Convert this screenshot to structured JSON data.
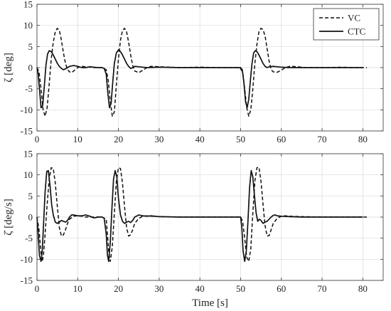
{
  "chart_data": [
    {
      "type": "line",
      "ylabel": "ζ [deg]",
      "xlabel": "",
      "xlim": [
        0,
        85
      ],
      "ylim": [
        -15,
        15
      ],
      "xticks": [
        "0",
        "10",
        "20",
        "30",
        "40",
        "50",
        "60",
        "70",
        "80"
      ],
      "yticks": [
        "-15",
        "-10",
        "-5",
        "0",
        "5",
        "10",
        "15"
      ],
      "grid": true,
      "legend": "top-right",
      "series": [
        {
          "name": "VC",
          "style": "dashed",
          "color": "#111111",
          "x": [
            0,
            0.5,
            1.0,
            1.5,
            2.0,
            2.5,
            3.0,
            3.5,
            4.0,
            4.5,
            5.0,
            5.5,
            6.0,
            6.5,
            7.0,
            7.5,
            8.0,
            8.5,
            9.0,
            10.0,
            11.0,
            12.0,
            14.0,
            16.0,
            17.0,
            17.5,
            18.0,
            18.5,
            19.0,
            19.5,
            20.0,
            20.5,
            21.0,
            21.5,
            22.0,
            22.5,
            23.0,
            23.5,
            24.0,
            25.0,
            26.0,
            27.0,
            28.0,
            30.0,
            35.0,
            40.0,
            45.0,
            49.0,
            50.0,
            50.5,
            51.0,
            51.5,
            52.0,
            52.5,
            53.0,
            53.5,
            54.0,
            54.5,
            55.0,
            55.5,
            56.0,
            56.5,
            57.0,
            57.5,
            58.0,
            59.0,
            60.0,
            61.0,
            62.0,
            64.0,
            66.0,
            70.0,
            75.0,
            78.0,
            80.0,
            81.0
          ],
          "y": [
            0,
            -1,
            -5,
            -10,
            -11.5,
            -9.5,
            -4,
            2,
            6,
            8.5,
            9.3,
            8.8,
            6.5,
            3.5,
            1,
            -0.5,
            -1,
            -1.2,
            -0.8,
            0,
            0.3,
            0.2,
            0,
            0,
            -0.5,
            -3,
            -8,
            -11.5,
            -10.5,
            -4,
            2,
            6.5,
            8.8,
            9.3,
            8.5,
            6,
            3,
            0.5,
            -0.8,
            -1.2,
            -0.6,
            0,
            0.3,
            0.2,
            0,
            0.1,
            0,
            0,
            -0.3,
            -1,
            -5,
            -9.5,
            -11.5,
            -10,
            -5,
            1,
            5.5,
            8.5,
            9.3,
            9.0,
            7.5,
            4.5,
            1.5,
            -0.5,
            -1,
            -1.1,
            -0.6,
            0,
            0.3,
            0.2,
            0,
            0,
            0.1,
            0,
            0,
            0
          ]
        },
        {
          "name": "CTC",
          "style": "solid",
          "color": "#111111",
          "x": [
            0,
            0.3,
            0.7,
            1.0,
            1.4,
            1.8,
            2.2,
            2.6,
            3.0,
            3.5,
            4.0,
            4.5,
            5.0,
            5.5,
            6.0,
            6.5,
            7.0,
            7.5,
            8.0,
            9.0,
            10.0,
            11.0,
            12.0,
            13.0,
            14.0,
            15.0,
            16.0,
            16.5,
            17.0,
            17.4,
            17.8,
            18.2,
            18.6,
            19.0,
            19.5,
            20.0,
            20.5,
            21.0,
            21.5,
            22.0,
            22.5,
            23.0,
            23.5,
            24.0,
            25.0,
            26.0,
            27.0,
            30.0,
            35.0,
            40.0,
            45.0,
            49.0,
            50.0,
            50.4,
            50.8,
            51.2,
            51.6,
            52.0,
            52.4,
            52.8,
            53.2,
            53.6,
            54.0,
            54.5,
            55.0,
            55.5,
            56.0,
            56.5,
            57.0,
            58.0,
            59.0,
            60.0,
            62.0,
            65.0,
            70.0,
            75.0,
            80.0
          ],
          "y": [
            0,
            -1.5,
            -6,
            -9.5,
            -9,
            -4.5,
            0.5,
            3.2,
            4.0,
            3.8,
            3.0,
            2.0,
            1.0,
            0.3,
            -0.2,
            -0.5,
            -0.3,
            0,
            0.3,
            0.5,
            0.3,
            0,
            0,
            0.2,
            0.1,
            0,
            0,
            -0.2,
            -1.5,
            -6,
            -9.5,
            -8.5,
            -3.5,
            1,
            3.5,
            4.2,
            3.8,
            3.0,
            2.0,
            1.0,
            0.3,
            -0.2,
            0,
            0.3,
            0.2,
            0.1,
            0,
            0.1,
            0,
            0,
            0,
            0,
            0,
            -0.5,
            -3.5,
            -8,
            -9.5,
            -7.5,
            -3,
            1,
            3.5,
            4.0,
            3.8,
            3.0,
            2.0,
            1.0,
            0.3,
            0,
            0.2,
            0.3,
            0.2,
            0.1,
            0,
            0,
            0,
            0,
            0
          ]
        }
      ]
    },
    {
      "type": "line",
      "ylabel": "ζ̇ [deg/s]",
      "xlabel": "Time [s]",
      "xlim": [
        0,
        85
      ],
      "ylim": [
        -15,
        15
      ],
      "xticks": [
        "0",
        "10",
        "20",
        "30",
        "40",
        "50",
        "60",
        "70",
        "80"
      ],
      "yticks": [
        "-15",
        "-10",
        "-5",
        "0",
        "5",
        "10",
        "15"
      ],
      "grid": true,
      "series": [
        {
          "name": "VC",
          "style": "dashed",
          "color": "#111111",
          "x": [
            0,
            0.5,
            1.0,
            1.3,
            1.6,
            2.0,
            2.5,
            3.0,
            3.5,
            4.0,
            4.5,
            5.0,
            5.5,
            6.0,
            6.5,
            7.0,
            7.5,
            8.0,
            9.0,
            10.0,
            11.0,
            12.0,
            14.0,
            16.0,
            17.0,
            17.3,
            17.6,
            18.0,
            18.5,
            19.0,
            19.5,
            20.0,
            20.5,
            21.0,
            21.5,
            22.0,
            22.5,
            23.0,
            23.5,
            24.0,
            25.0,
            26.0,
            27.0,
            28.0,
            30.0,
            35.0,
            40.0,
            45.0,
            50.0,
            50.5,
            51.0,
            51.5,
            52.0,
            52.5,
            53.0,
            53.5,
            54.0,
            54.5,
            55.0,
            55.5,
            56.0,
            56.5,
            57.0,
            57.5,
            58.0,
            59.0,
            60.0,
            61.0,
            62.0,
            65.0,
            70.0,
            75.0,
            80.0,
            81.0
          ],
          "y": [
            0,
            -3,
            -8.5,
            -10.5,
            -9,
            -4,
            3,
            9,
            11.7,
            11.5,
            8,
            2.5,
            -2.5,
            -4.5,
            -4.2,
            -3,
            -1.5,
            -0.5,
            0.2,
            0.3,
            0.2,
            0,
            0,
            0,
            -0.5,
            -4,
            -8,
            -10.5,
            -7,
            1,
            8.5,
            11.7,
            11.5,
            8,
            2.5,
            -2.5,
            -4.5,
            -4.2,
            -3,
            -1.5,
            -0.3,
            0.2,
            0.3,
            0.2,
            0.1,
            0,
            0,
            0,
            0,
            -1,
            -5,
            -9.5,
            -10.5,
            -7.5,
            1,
            8.5,
            11.7,
            11.8,
            8.5,
            3,
            -2,
            -4.5,
            -4.4,
            -3,
            -1.5,
            -0.3,
            0.2,
            0.3,
            0.2,
            0.1,
            0,
            0,
            0,
            0
          ]
        },
        {
          "name": "CTC",
          "style": "solid",
          "color": "#111111",
          "x": [
            0,
            0.3,
            0.6,
            1.0,
            1.3,
            1.6,
            2.0,
            2.4,
            2.8,
            3.2,
            3.6,
            4.0,
            4.5,
            5.0,
            5.5,
            6.0,
            6.5,
            7.0,
            7.5,
            8.0,
            8.5,
            9.0,
            10.0,
            11.0,
            12.0,
            13.0,
            14.0,
            15.0,
            16.0,
            16.5,
            17.0,
            17.3,
            17.6,
            18.0,
            18.4,
            18.8,
            19.2,
            19.6,
            20.0,
            20.5,
            21.0,
            21.5,
            22.0,
            22.5,
            23.0,
            23.5,
            24.0,
            25.0,
            26.0,
            27.0,
            28.0,
            30.0,
            35.0,
            40.0,
            45.0,
            49.0,
            50.0,
            50.3,
            50.6,
            51.0,
            51.4,
            51.8,
            52.2,
            52.6,
            53.0,
            53.4,
            53.8,
            54.2,
            54.6,
            55.0,
            55.5,
            56.0,
            56.5,
            57.0,
            57.5,
            58.0,
            58.5,
            59.0,
            60.0,
            62.0,
            65.0,
            70.0,
            75.0,
            80.0
          ],
          "y": [
            0,
            -4,
            -9,
            -10.5,
            -8,
            -2,
            6,
            10.8,
            11.0,
            7.5,
            3,
            0.5,
            -1.2,
            -1.5,
            -1.2,
            -0.8,
            -1.0,
            -1.2,
            -0.8,
            0,
            0.5,
            0.5,
            0.3,
            0.3,
            0.5,
            0.2,
            -0.2,
            0,
            0,
            -0.3,
            -4,
            -9,
            -10.5,
            -6,
            2,
            9,
            11.0,
            9.5,
            4.5,
            0.5,
            -1.0,
            -1.5,
            -1.2,
            -1.0,
            -1.3,
            -0.8,
            0,
            0.5,
            0.3,
            0.2,
            0.3,
            0.1,
            0,
            0,
            0,
            0,
            0,
            -2.5,
            -8,
            -10.5,
            -8,
            -1,
            7,
            11.0,
            9.5,
            5,
            1,
            -1,
            -0.5,
            -0.8,
            -1.5,
            -1.2,
            -1.0,
            -0.5,
            0,
            0.4,
            0.5,
            0.3,
            0.2,
            0.1,
            0,
            0,
            0,
            0
          ]
        }
      ]
    }
  ]
}
